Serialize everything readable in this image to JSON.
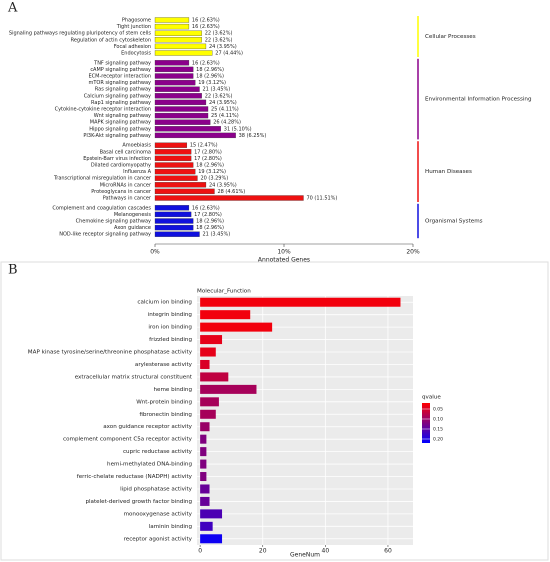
{
  "chart_data": [
    {
      "type": "bar",
      "orientation": "horizontal",
      "panel_label": "A",
      "xlabel": "Annotated Genes",
      "xlim": [
        0,
        20
      ],
      "xticks": [
        {
          "value": 0,
          "label": "0%"
        },
        {
          "value": 10,
          "label": "10%"
        },
        {
          "value": 20,
          "label": "20%"
        }
      ],
      "series": [
        {
          "name": "Cellular Processes",
          "color": "#ffff00",
          "categories": [
            "Phagosome",
            "Tight junction",
            "Signaling pathways regulating pluripotency of stem cells",
            "Regulation of actin cytoskeleton",
            "Focal adhesion",
            "Endocytosis"
          ],
          "values": [
            2.63,
            2.63,
            3.62,
            3.62,
            3.95,
            4.44
          ],
          "value_labels": [
            "16 (2.63%)",
            "16 (2.63%)",
            "22 (3.62%)",
            "22 (3.62%)",
            "24 (3.95%)",
            "27 (4.44%)"
          ]
        },
        {
          "name": "Environmental Information Processing",
          "color": "#8b008b",
          "categories": [
            "TNF signaling pathway",
            "cAMP signaling pathway",
            "ECM-receptor interaction",
            "mTOR signaling pathway",
            "Ras signaling pathway",
            "Calcium signaling pathway",
            "Rap1 signaling pathway",
            "Cytokine-cytokine receptor interaction",
            "Wnt signaling pathway",
            "MAPK signaling pathway",
            "Hippo signaling pathway",
            "PI3K-Akt signaling pathway"
          ],
          "values": [
            2.63,
            2.96,
            2.96,
            3.12,
            3.45,
            3.62,
            3.95,
            4.11,
            4.11,
            4.28,
            5.1,
            6.25
          ],
          "value_labels": [
            "16 (2.63%)",
            "18 (2.96%)",
            "18 (2.96%)",
            "19 (3.12%)",
            "21 (3.45%)",
            "22 (3.62%)",
            "24 (3.95%)",
            "25 (4.11%)",
            "25 (4.11%)",
            "26 (4.28%)",
            "31 (5.10%)",
            "38 (6.25%)"
          ]
        },
        {
          "name": "Human Diseases",
          "color": "#ee1111",
          "categories": [
            "Amoebiasis",
            "Basal cell carcinoma",
            "Epstein-Barr virus infection",
            "Dilated cardiomyopathy",
            "Influenza A",
            "Transcriptional misregulation in cancer",
            "MicroRNAs in cancer",
            "Proteoglycans in cancer",
            "Pathways in cancer"
          ],
          "values": [
            2.47,
            2.8,
            2.8,
            2.96,
            3.12,
            3.29,
            3.95,
            4.61,
            11.51
          ],
          "value_labels": [
            "15 (2.47%)",
            "17 (2.80%)",
            "17 (2.80%)",
            "18 (2.96%)",
            "19 (3.12%)",
            "20 (3.29%)",
            "24 (3.95%)",
            "28 (4.61%)",
            "70 (11.51%)"
          ]
        },
        {
          "name": "Organismal Systems",
          "color": "#1010dd",
          "categories": [
            "Complement and coagulation cascades",
            "Melanogenesis",
            "Chemokine signaling pathway",
            "Axon guidance",
            "NOD-like receptor signaling pathway"
          ],
          "values": [
            2.63,
            2.8,
            2.96,
            2.96,
            3.45
          ],
          "value_labels": [
            "16 (2.63%)",
            "17 (2.80%)",
            "18 (2.96%)",
            "18 (2.96%)",
            "21 (3.45%)"
          ]
        }
      ]
    },
    {
      "type": "bar",
      "orientation": "horizontal",
      "panel_label": "B",
      "title": "Molecular_Function",
      "xlabel": "GeneNum",
      "xlim": [
        -1,
        68
      ],
      "xticks": [
        0,
        20,
        40,
        60
      ],
      "grid": true,
      "categories": [
        "calcium ion binding",
        "integrin binding",
        "iron ion binding",
        "frizzled binding",
        "MAP kinase tyrosine/serine/threonine phosphatase activity",
        "arylesterase activity",
        "extracellular matrix structural constituent",
        "heme binding",
        "Wnt-protein binding",
        "fibronectin binding",
        "axon guidance receptor activity",
        "complement component C5a receptor activity",
        "cupric reductase activity",
        "hemi-methylated DNA-binding",
        "ferric-chelate reductase (NADPH) activity",
        "lipid phosphatase activity",
        "platelet-derived growth factor binding",
        "monooxygenase activity",
        "laminin binding",
        "receptor agonist activity"
      ],
      "values": [
        64,
        16,
        23,
        7,
        5,
        3,
        9,
        18,
        6,
        5,
        3,
        2,
        2,
        2,
        2,
        3,
        3,
        7,
        4,
        7
      ],
      "qvalues": [
        0.03,
        0.03,
        0.03,
        0.04,
        0.04,
        0.05,
        0.07,
        0.09,
        0.09,
        0.09,
        0.1,
        0.12,
        0.12,
        0.12,
        0.12,
        0.14,
        0.14,
        0.16,
        0.17,
        0.21
      ],
      "colorbar": {
        "title": "qvalue",
        "range": [
          0.02,
          0.22
        ],
        "low_color": "#ff0000",
        "high_color": "#0000ff",
        "ticks": [
          0.05,
          {
            "value": 0.1,
            "label": "0.10"
          },
          0.15,
          {
            "value": 0.2,
            "label": "0.20"
          }
        ]
      }
    }
  ]
}
